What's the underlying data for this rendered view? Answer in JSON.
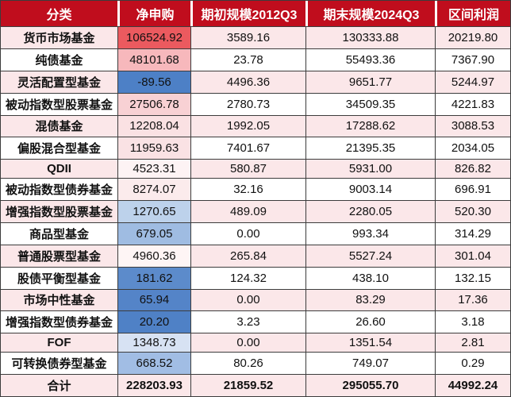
{
  "chart_data": {
    "type": "table",
    "title": "",
    "columns": [
      "分类",
      "净申购",
      "期初规模2012Q3",
      "期末规模2024Q3",
      "区间利润"
    ],
    "rows": [
      {
        "category": "货币市场基金",
        "net": "106524.92",
        "begin": "3589.16",
        "end": "130333.88",
        "profit": "20219.80",
        "type": "data"
      },
      {
        "category": "纯债基金",
        "net": "48101.68",
        "begin": "23.78",
        "end": "55493.36",
        "profit": "7367.90",
        "type": "data"
      },
      {
        "category": "灵活配置型基金",
        "net": "-89.56",
        "begin": "4496.36",
        "end": "9651.77",
        "profit": "5244.97",
        "type": "data"
      },
      {
        "category": "被动指数型股票基金",
        "net": "27506.78",
        "begin": "2780.73",
        "end": "34509.35",
        "profit": "4221.83",
        "type": "data"
      },
      {
        "category": "混债基金",
        "net": "12208.04",
        "begin": "1992.05",
        "end": "17288.62",
        "profit": "3088.53",
        "type": "data"
      },
      {
        "category": "偏股混合型基金",
        "net": "11959.63",
        "begin": "7401.67",
        "end": "21395.35",
        "profit": "2034.05",
        "type": "data"
      },
      {
        "category": "QDII",
        "net": "4523.31",
        "begin": "580.87",
        "end": "5931.00",
        "profit": "826.82",
        "type": "data"
      },
      {
        "category": "被动指数型债券基金",
        "net": "8274.07",
        "begin": "32.16",
        "end": "9003.14",
        "profit": "696.91",
        "type": "data"
      },
      {
        "category": "增强指数型股票基金",
        "net": "1270.65",
        "begin": "489.09",
        "end": "2280.05",
        "profit": "520.30",
        "type": "data"
      },
      {
        "category": "商品型基金",
        "net": "679.05",
        "begin": "0.00",
        "end": "993.34",
        "profit": "314.29",
        "type": "data"
      },
      {
        "category": "普通股票型基金",
        "net": "4960.36",
        "begin": "265.84",
        "end": "5527.24",
        "profit": "301.04",
        "type": "data"
      },
      {
        "category": "股债平衡型基金",
        "net": "181.62",
        "begin": "124.32",
        "end": "438.10",
        "profit": "132.15",
        "type": "data"
      },
      {
        "category": "市场中性基金",
        "net": "65.94",
        "begin": "0.00",
        "end": "83.29",
        "profit": "17.36",
        "type": "data"
      },
      {
        "category": "增强指数型债券基金",
        "net": "20.20",
        "begin": "3.23",
        "end": "26.60",
        "profit": "3.18",
        "type": "data"
      },
      {
        "category": "FOF",
        "net": "1348.73",
        "begin": "0.00",
        "end": "1351.54",
        "profit": "2.81",
        "type": "data"
      },
      {
        "category": "可转换债券型基金",
        "net": "668.52",
        "begin": "80.26",
        "end": "749.07",
        "profit": "0.29",
        "type": "data"
      },
      {
        "category": "合计",
        "net": "228203.93",
        "begin": "21859.52",
        "end": "295055.70",
        "profit": "44992.24",
        "type": "total"
      }
    ]
  },
  "style": {
    "header_bg": "#C00D1D",
    "header_text": "#FFFFFF",
    "row_pink": "#FBE7E9",
    "row_white": "#FFFFFF",
    "border": "#3C3C3C",
    "net_cell_colors": [
      "#EB5A5F",
      "#F7B8BC",
      "#4D80C6",
      "#F8D1D4",
      "#FAE1E3",
      "#FAE2E4",
      "#FDF3F4",
      "#FBEBEC",
      "#BDD2EB",
      "#9FBCE2",
      "#FEF5F5",
      "#5C8BCB",
      "#5484C8",
      "#4F81C6",
      "#D7E2F3",
      "#A1BDE4",
      null
    ]
  }
}
